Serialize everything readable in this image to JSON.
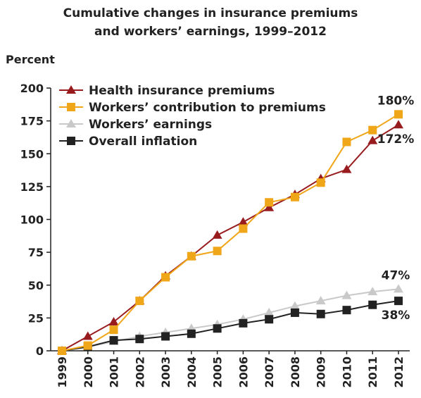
{
  "chart_data": {
    "type": "line",
    "title": [
      "Cumulative changes in insurance premiums",
      "and workers’ earnings, 1999–2012"
    ],
    "y_label": "Percent",
    "categories": [
      "1999",
      "2000",
      "2001",
      "2002",
      "2003",
      "2004",
      "2005",
      "2006",
      "2007",
      "2008",
      "2009",
      "2010",
      "2011",
      "2012"
    ],
    "series": [
      {
        "name": "Health insurance premiums",
        "color": "#981b1e",
        "marker": "triangle",
        "values": [
          0,
          11,
          22,
          38,
          57,
          72,
          88,
          98,
          109,
          119,
          131,
          138,
          160,
          172
        ],
        "value_labels": [
          null,
          null,
          null,
          null,
          null,
          null,
          null,
          null,
          null,
          null,
          null,
          null,
          null,
          "172%"
        ]
      },
      {
        "name": "Workers’ contribution to premiums",
        "color": "#f0a619",
        "marker": "square",
        "values": [
          0,
          4,
          16,
          38,
          56,
          72,
          76,
          93,
          113,
          117,
          128,
          159,
          168,
          180
        ],
        "value_labels": [
          null,
          null,
          null,
          null,
          null,
          null,
          null,
          null,
          null,
          null,
          null,
          null,
          null,
          "180%"
        ]
      },
      {
        "name": "Workers’ earnings",
        "color": "#c9c9c9",
        "marker": "triangle",
        "values": [
          0,
          3,
          7,
          11,
          14,
          17,
          20,
          24,
          29,
          34,
          38,
          42,
          45,
          47
        ],
        "value_labels": [
          null,
          null,
          null,
          null,
          null,
          null,
          null,
          null,
          null,
          null,
          null,
          null,
          null,
          "47%"
        ]
      },
      {
        "name": "Overall inflation",
        "color": "#222222",
        "marker": "square",
        "values": [
          0,
          3,
          8,
          9,
          11,
          13,
          17,
          21,
          24,
          29,
          28,
          31,
          35,
          38
        ],
        "value_labels": [
          null,
          null,
          null,
          null,
          null,
          null,
          null,
          null,
          null,
          null,
          null,
          null,
          null,
          "38%"
        ]
      }
    ],
    "ylim": [
      0,
      200
    ],
    "yticks": [
      0,
      25,
      50,
      75,
      100,
      125,
      150,
      175,
      200
    ],
    "legend": "upper-left"
  }
}
